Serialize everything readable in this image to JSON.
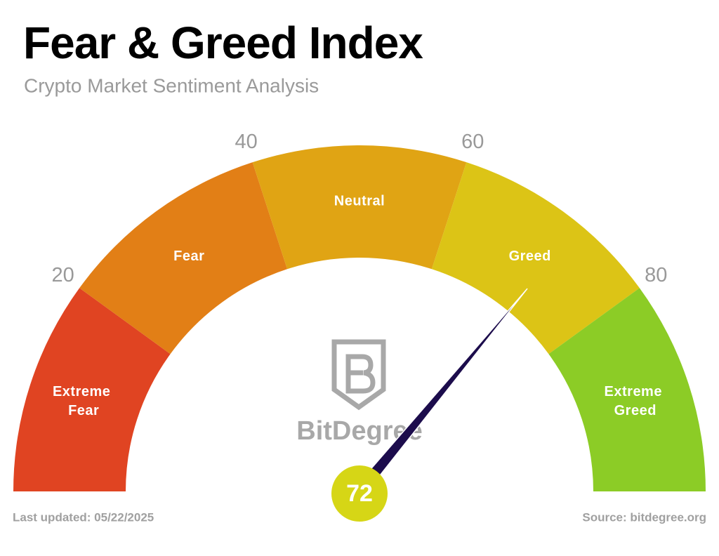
{
  "chart_data": {
    "type": "gauge",
    "title": "Fear & Greed Index",
    "subtitle": "Crypto Market Sentiment Analysis",
    "ylim": [
      0,
      100
    ],
    "yticks": [
      20,
      40,
      60,
      80
    ],
    "segments": [
      {
        "name": "Extreme Fear",
        "color": "#e04422"
      },
      {
        "name": "Fear",
        "color": "#e27f16"
      },
      {
        "name": "Neutral",
        "color": "#e0a414"
      },
      {
        "name": "Greed",
        "color": "#dcc416"
      },
      {
        "name": "Extreme Greed",
        "color": "#8ccc26"
      }
    ],
    "value": 72,
    "value_color": "#d6d616",
    "needle_color": "#1c0c4c",
    "logo": "BitDegree",
    "updated": "Last updated: 05/22/2025",
    "source": "Source: bitdegree.org"
  }
}
